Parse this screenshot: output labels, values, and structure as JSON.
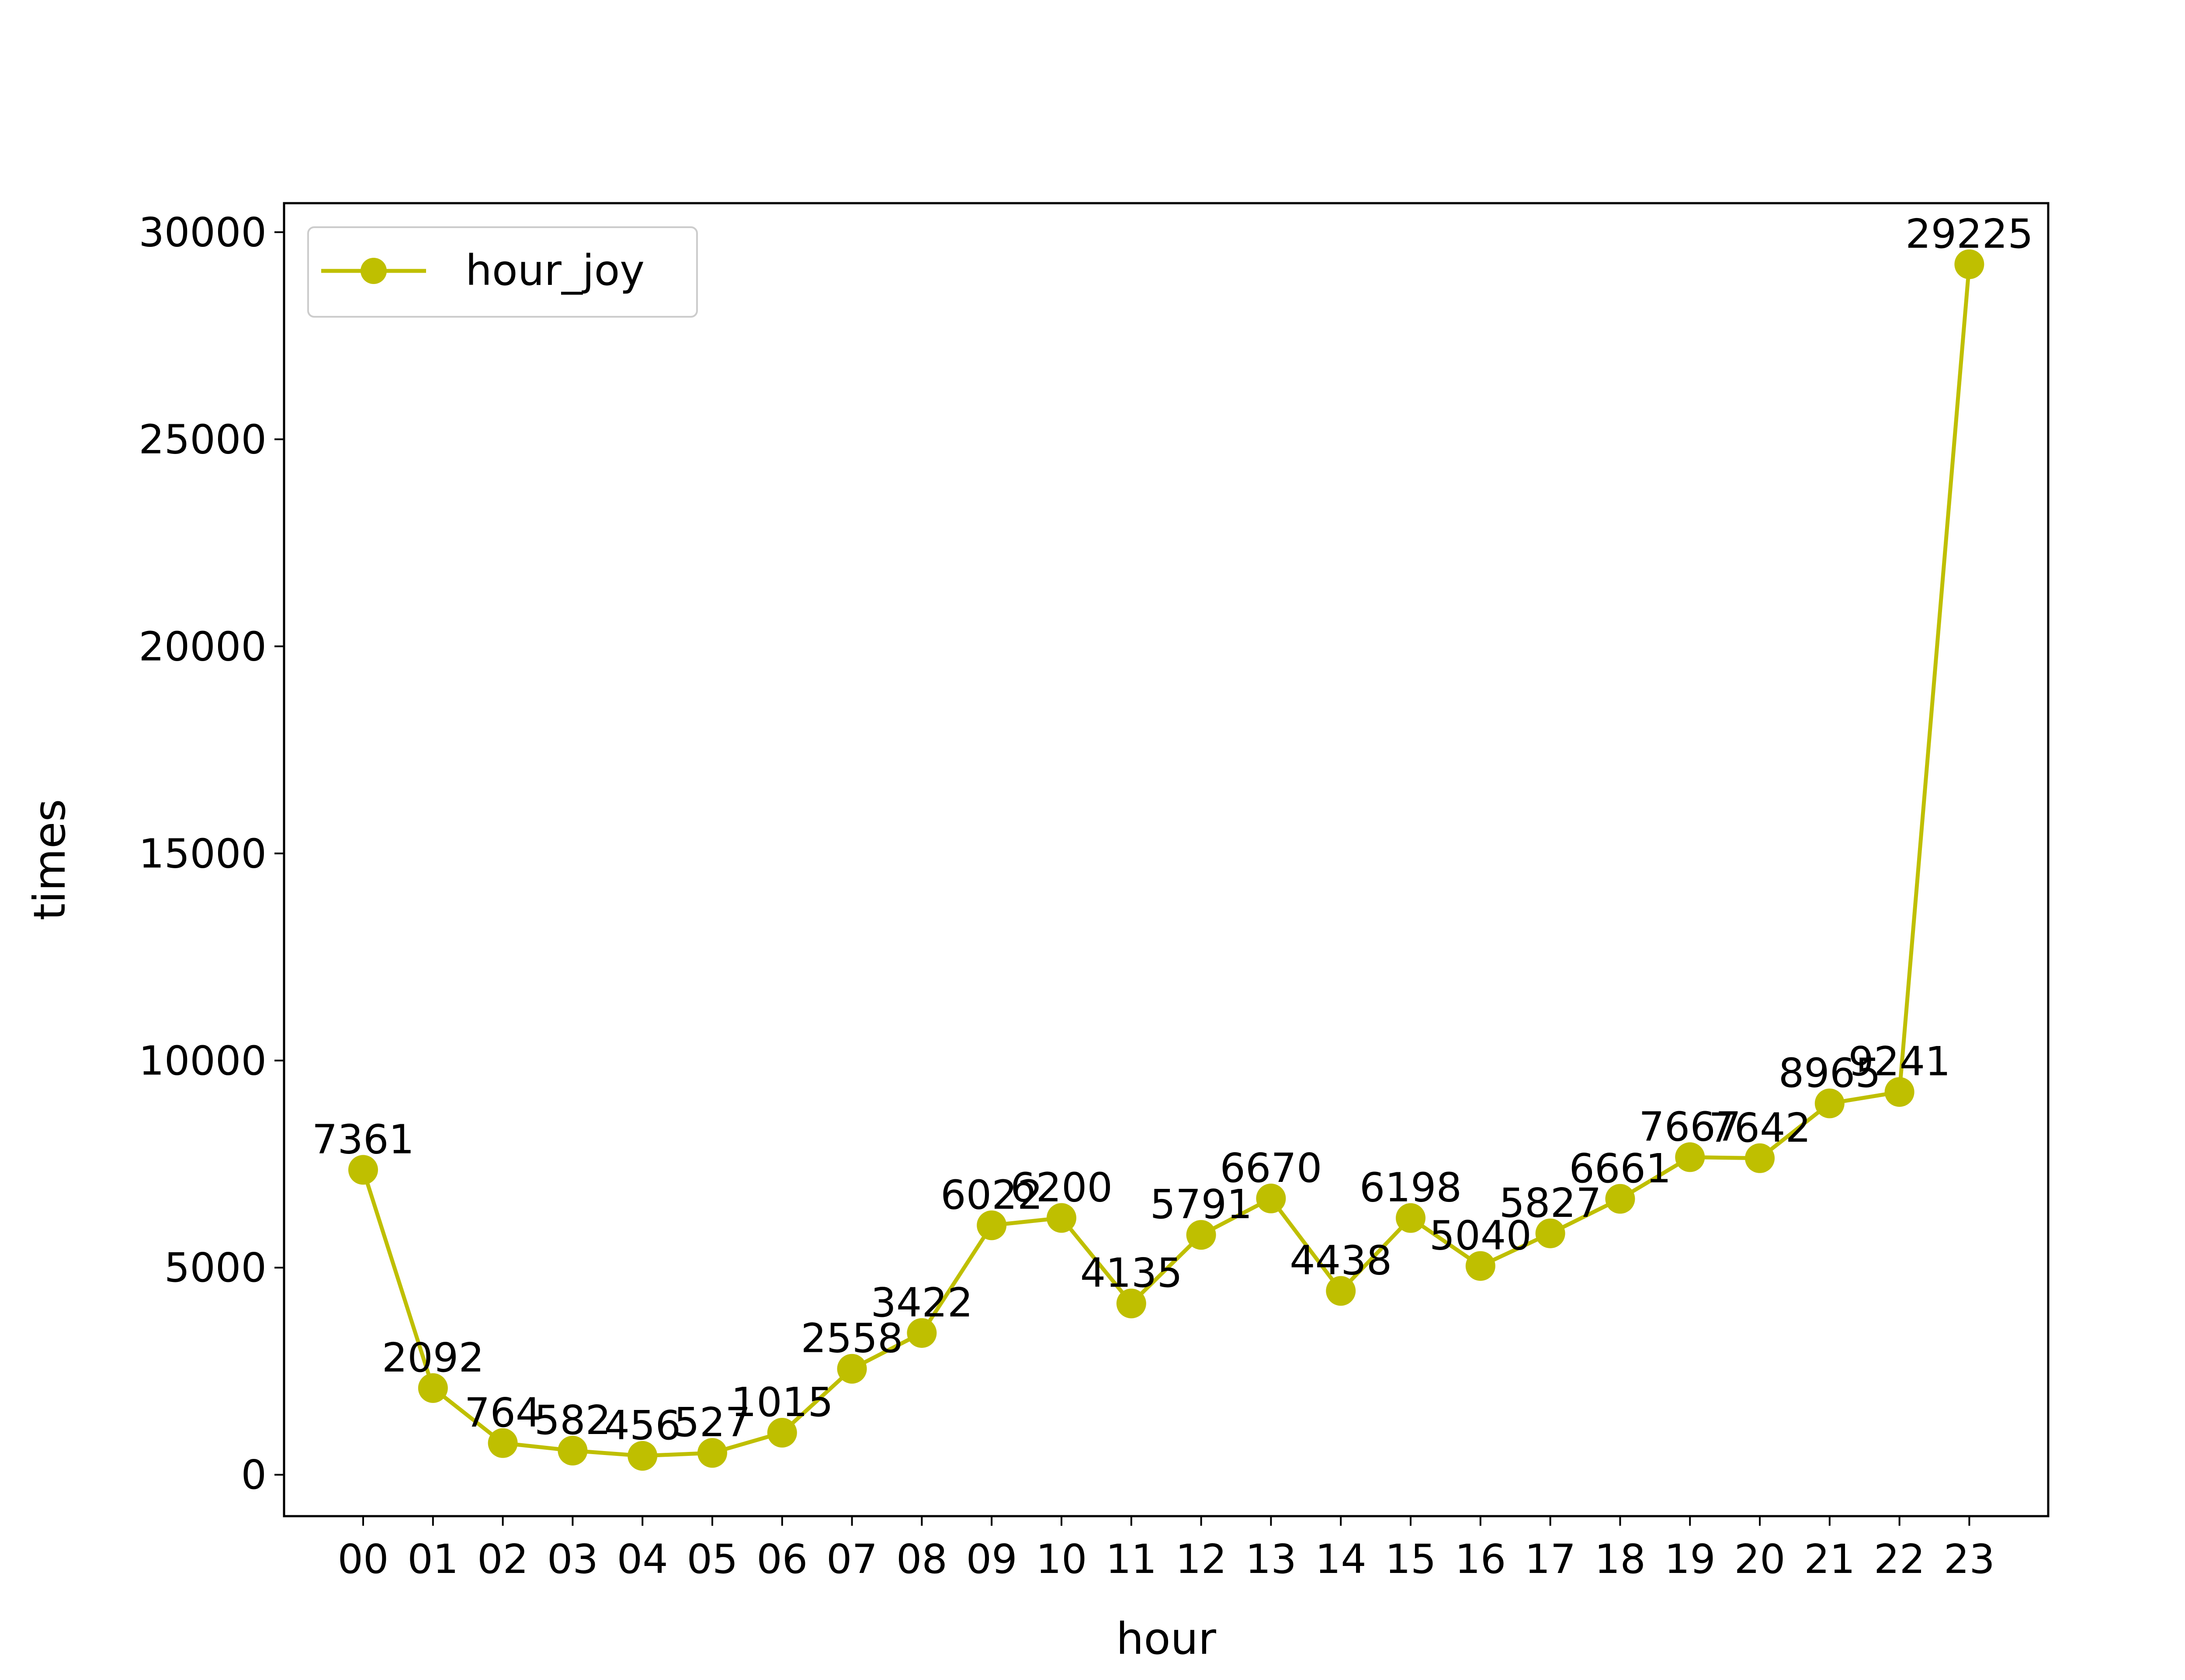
{
  "chart_data": {
    "type": "line",
    "title": "",
    "xlabel": "hour",
    "ylabel": "times",
    "categories": [
      "00",
      "01",
      "02",
      "03",
      "04",
      "05",
      "06",
      "07",
      "08",
      "09",
      "10",
      "11",
      "12",
      "13",
      "14",
      "15",
      "16",
      "17",
      "18",
      "19",
      "20",
      "21",
      "22",
      "23"
    ],
    "series": [
      {
        "name": "hour_joy",
        "color": "#bfbf00",
        "marker": "circle",
        "values": [
          7361,
          2092,
          764,
          582,
          456,
          527,
          1015,
          2558,
          3422,
          6022,
          6200,
          4135,
          5791,
          6670,
          4438,
          6198,
          5040,
          5827,
          6661,
          7667,
          7642,
          8965,
          9241,
          29225
        ]
      }
    ],
    "y_ticks": [
      "0",
      "5000",
      "10000",
      "15000",
      "20000",
      "25000",
      "30000"
    ],
    "ylim": [
      -1000,
      30700
    ],
    "data_labels": [
      "7361",
      "2092",
      "764",
      "582",
      "456",
      "527",
      "1015",
      "2558",
      "3422",
      "6022",
      "6200",
      "4135",
      "5791",
      "6670",
      "4438",
      "6198",
      "5040",
      "5827",
      "6661",
      "7667",
      "7642",
      "8965",
      "9241",
      "29225"
    ],
    "grid": false,
    "legend_position": "upper-left"
  }
}
